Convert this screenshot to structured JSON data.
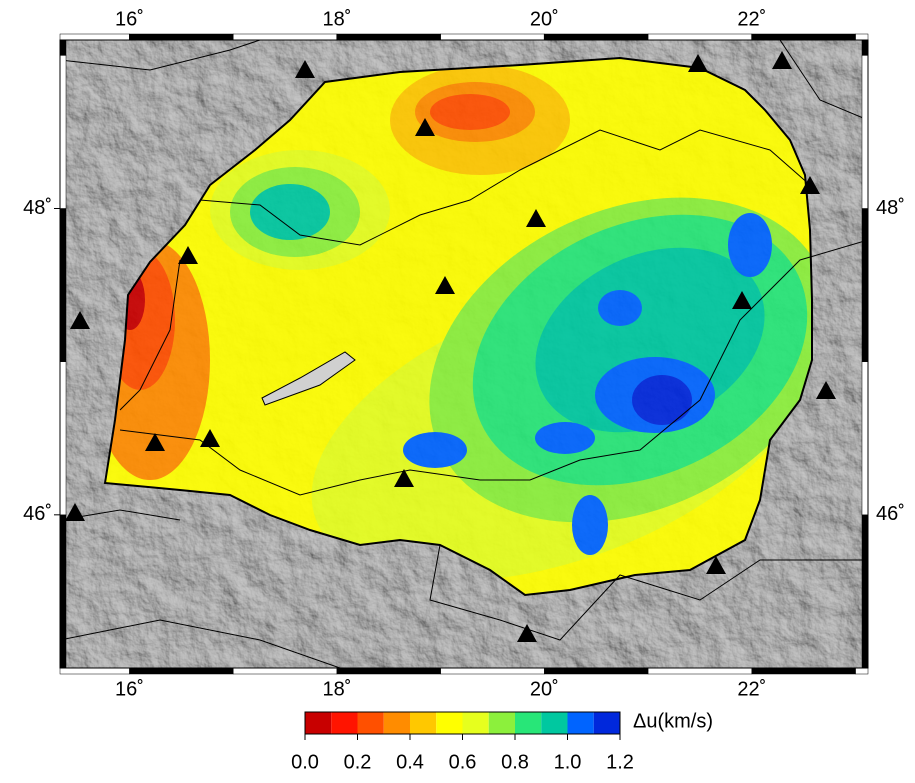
{
  "map": {
    "lonlim": [
      15.33,
      23.12
    ],
    "latlim": [
      45.0,
      49.1
    ],
    "xticks": [
      {
        "value": 16,
        "label": "16˚"
      },
      {
        "value": 18,
        "label": "18˚"
      },
      {
        "value": 20,
        "label": "20˚"
      },
      {
        "value": 22,
        "label": "22˚"
      }
    ],
    "yticks": [
      {
        "value": 46,
        "label": "46˚"
      },
      {
        "value": 48,
        "label": "48˚"
      }
    ],
    "colorbar": {
      "title": "Δu(km/s)",
      "lim": [
        0,
        1.2
      ],
      "ticks": [
        {
          "value": 0,
          "label": "0.0"
        },
        {
          "value": 0.2,
          "label": "0.2"
        },
        {
          "value": 0.4,
          "label": "0.4"
        },
        {
          "value": 0.6,
          "label": "0.6"
        },
        {
          "value": 0.8,
          "label": "0.8"
        },
        {
          "value": 1,
          "label": "1.0"
        },
        {
          "value": 1.2,
          "label": "1.2"
        }
      ],
      "colors": [
        "#c80000",
        "#ff1400",
        "#ff5000",
        "#ff8c00",
        "#ffc800",
        "#ffff00",
        "#e6ff1e",
        "#8cf03c",
        "#28e678",
        "#00c8a0",
        "#0064ff",
        "#0028dc"
      ]
    }
  }
}
